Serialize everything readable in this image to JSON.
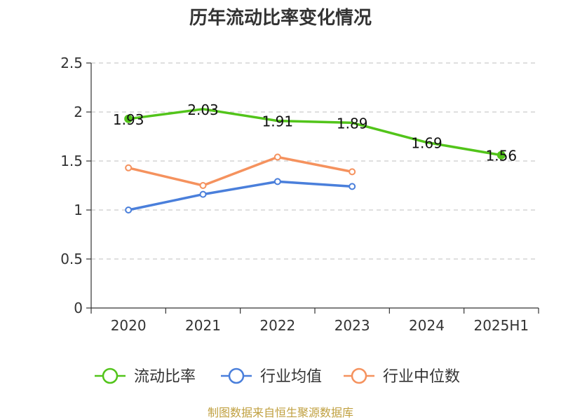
{
  "chart_data": {
    "type": "line",
    "title": "历年流动比率变化情况",
    "categories": [
      "2020",
      "2021",
      "2022",
      "2023",
      "2024",
      "2025H1"
    ],
    "ylim": [
      0,
      2.5
    ],
    "yticks": [
      "0",
      "0.5",
      "1",
      "1.5",
      "2",
      "2.5"
    ],
    "grid": true,
    "legend_position": "bottom",
    "series": [
      {
        "name": "流动比率",
        "color": "#52c41a",
        "values": [
          1.93,
          2.03,
          1.91,
          1.89,
          1.69,
          1.56
        ],
        "labels": [
          "1.93",
          "2.03",
          "1.91",
          "1.89",
          "1.69",
          "1.56"
        ]
      },
      {
        "name": "行业均值",
        "color": "#4a7fdb",
        "values": [
          1.0,
          1.16,
          1.29,
          1.24,
          null,
          null
        ]
      },
      {
        "name": "行业中位数",
        "color": "#f5925e",
        "values": [
          1.43,
          1.25,
          1.54,
          1.39,
          null,
          null
        ]
      }
    ]
  },
  "footer": {
    "source": "制图数据来自恒生聚源数据库"
  }
}
